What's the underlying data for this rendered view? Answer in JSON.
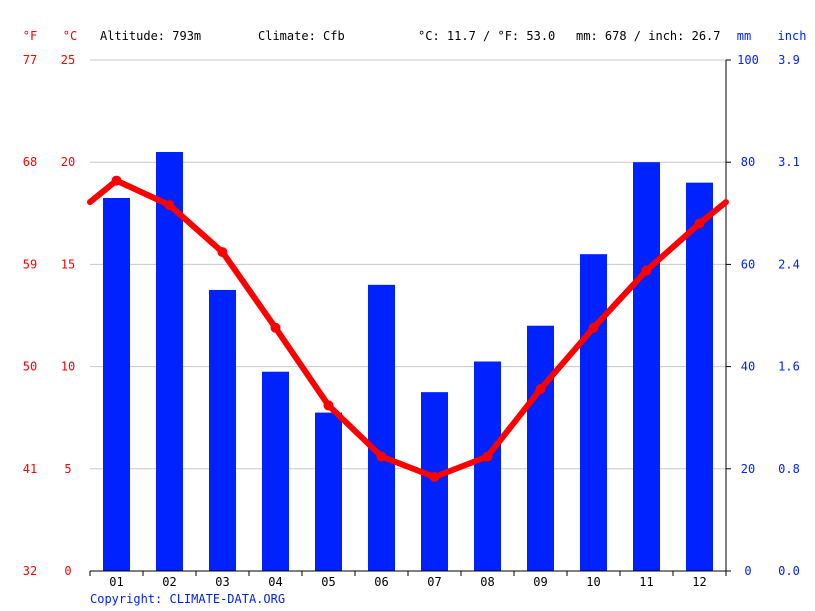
{
  "header": {
    "unit_f": "°F",
    "unit_c": "°C",
    "altitude": "Altitude: 793m",
    "climate": "Climate: Cfb",
    "temp_avg": "°C: 11.7 / °F: 53.0",
    "precip_total": "mm: 678 / inch: 26.7",
    "unit_mm": "mm",
    "unit_inch": "inch"
  },
  "copyright": "Copyright: CLIMATE-DATA.ORG",
  "colors": {
    "temperature": "#ff0000",
    "precipitation": "#0022ff",
    "grid": "#c8c8c8",
    "axis": "#000000"
  },
  "chart_data": {
    "type": "bar",
    "categories": [
      "01",
      "02",
      "03",
      "04",
      "05",
      "06",
      "07",
      "08",
      "09",
      "10",
      "11",
      "12"
    ],
    "series": [
      {
        "type": "bar",
        "axis": "right",
        "values": [
          73,
          82,
          55,
          39,
          31,
          56,
          35,
          41,
          48,
          62,
          80,
          76
        ]
      },
      {
        "type": "line",
        "axis": "left",
        "values": [
          19.1,
          17.9,
          15.6,
          11.9,
          8.1,
          5.6,
          4.6,
          5.6,
          8.9,
          11.9,
          14.7,
          17.0
        ]
      }
    ],
    "y_left": {
      "range": [
        0,
        25
      ],
      "ticks_c": [
        "0",
        "5",
        "10",
        "15",
        "20",
        "25"
      ],
      "ticks_f": [
        "32",
        "41",
        "50",
        "59",
        "68",
        "77"
      ]
    },
    "y_right": {
      "range": [
        0,
        100
      ],
      "ticks_mm": [
        "0",
        "20",
        "40",
        "60",
        "80",
        "100"
      ],
      "ticks_inch": [
        "0.0",
        "0.8",
        "1.6",
        "2.4",
        "3.1",
        "3.9"
      ]
    },
    "grid": true
  }
}
